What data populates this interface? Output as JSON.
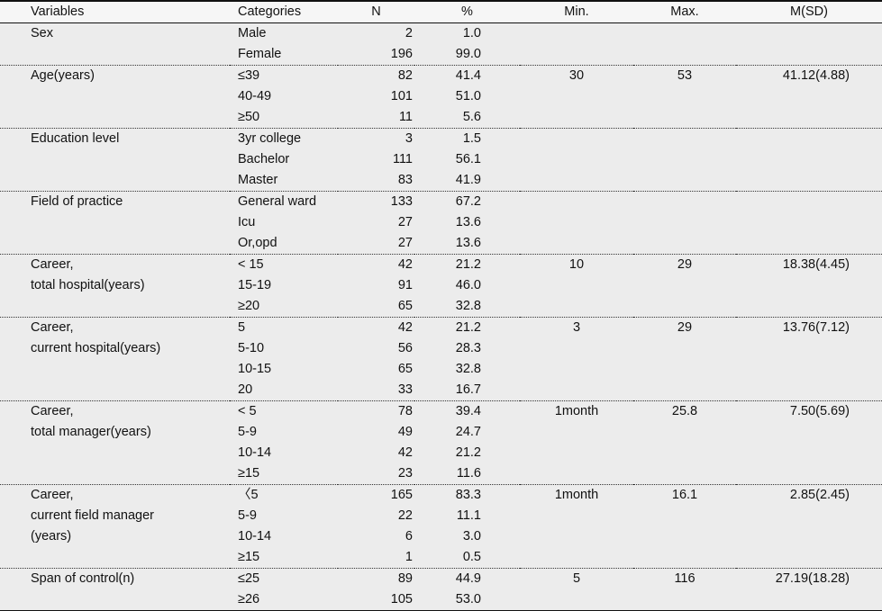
{
  "headers": {
    "variables": "Variables",
    "categories": "Categories",
    "n": "N",
    "pct": "%",
    "min": "Min.",
    "max": "Max.",
    "msd": "M(SD)"
  },
  "groups": [
    {
      "var_lines": [
        "Sex"
      ],
      "rows": [
        {
          "cat": "Male",
          "n": "2",
          "pct": "1.0"
        },
        {
          "cat": "Female",
          "n": "196",
          "pct": "99.0"
        }
      ],
      "min": "",
      "max": "",
      "msd": ""
    },
    {
      "var_lines": [
        "Age(years)"
      ],
      "rows": [
        {
          "cat": "≤39",
          "n": "82",
          "pct": "41.4"
        },
        {
          "cat": "40-49",
          "n": "101",
          "pct": "51.0"
        },
        {
          "cat": "≥50",
          "n": "11",
          "pct": "5.6"
        }
      ],
      "min": "30",
      "max": "53",
      "msd": "41.12(4.88)"
    },
    {
      "var_lines": [
        "Education level"
      ],
      "rows": [
        {
          "cat": "3yr college",
          "n": "3",
          "pct": "1.5"
        },
        {
          "cat": "Bachelor",
          "n": "111",
          "pct": "56.1"
        },
        {
          "cat": "Master",
          "n": "83",
          "pct": "41.9"
        }
      ],
      "min": "",
      "max": "",
      "msd": ""
    },
    {
      "var_lines": [
        "Field of practice"
      ],
      "rows": [
        {
          "cat": "General ward",
          "n": "133",
          "pct": "67.2"
        },
        {
          "cat": "Icu",
          "n": "27",
          "pct": "13.6"
        },
        {
          "cat": "Or,opd",
          "n": "27",
          "pct": "13.6"
        }
      ],
      "min": "",
      "max": "",
      "msd": ""
    },
    {
      "var_lines": [
        "Career,",
        "total hospital(years)"
      ],
      "rows": [
        {
          "cat": "< 15",
          "n": "42",
          "pct": "21.2"
        },
        {
          "cat": "15-19",
          "n": "91",
          "pct": "46.0"
        },
        {
          "cat": "≥20",
          "n": "65",
          "pct": "32.8"
        }
      ],
      "min": "10",
      "max": "29",
      "msd": "18.38(4.45)"
    },
    {
      "var_lines": [
        "Career,",
        "current hospital(years)"
      ],
      "rows": [
        {
          "cat": "5",
          "n": "42",
          "pct": "21.2"
        },
        {
          "cat": "5-10",
          "n": "56",
          "pct": "28.3"
        },
        {
          "cat": "10-15",
          "n": "65",
          "pct": "32.8"
        },
        {
          "cat": "20",
          "n": "33",
          "pct": "16.7"
        }
      ],
      "min": "3",
      "max": "29",
      "msd": "13.76(7.12)"
    },
    {
      "var_lines": [
        "Career,",
        "total manager(years)"
      ],
      "rows": [
        {
          "cat": "< 5",
          "n": "78",
          "pct": "39.4"
        },
        {
          "cat": "5-9",
          "n": "49",
          "pct": "24.7"
        },
        {
          "cat": "10-14",
          "n": "42",
          "pct": "21.2"
        },
        {
          "cat": "≥15",
          "n": "23",
          "pct": "11.6"
        }
      ],
      "min": "1month",
      "max": "25.8",
      "msd": "7.50(5.69)"
    },
    {
      "var_lines": [
        "Career,",
        "current field manager",
        "(years)"
      ],
      "rows": [
        {
          "cat": "〈5",
          "n": "165",
          "pct": "83.3"
        },
        {
          "cat": "5-9",
          "n": "22",
          "pct": "11.1"
        },
        {
          "cat": "10-14",
          "n": "6",
          "pct": "3.0"
        },
        {
          "cat": "≥15",
          "n": "1",
          "pct": "0.5"
        }
      ],
      "min": "1month",
      "max": "16.1",
      "msd": "2.85(2.45)"
    },
    {
      "var_lines": [
        "Span of control(n)"
      ],
      "rows": [
        {
          "cat": "≤25",
          "n": "89",
          "pct": "44.9"
        },
        {
          "cat": "≥26",
          "n": "105",
          "pct": "53.0"
        }
      ],
      "min": "5",
      "max": "116",
      "msd": "27.19(18.28)"
    }
  ]
}
